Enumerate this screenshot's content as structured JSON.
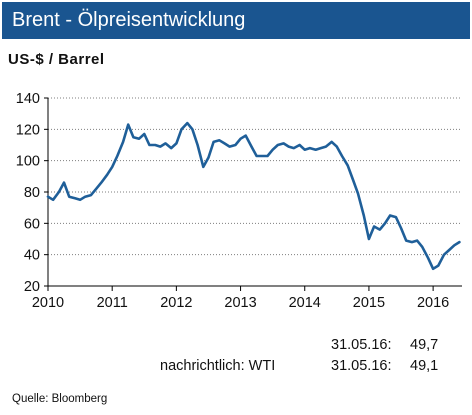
{
  "title": "Brent - Ölpreisentwicklung",
  "unit_label": "US-$ / Barrel",
  "annotations": [
    {
      "label": "",
      "date": "31.05.16:",
      "value": "49,7"
    },
    {
      "label": "nachrichtlich: WTI",
      "date": "31.05.16:",
      "value": "49,1"
    }
  ],
  "source": "Quelle: Bloomberg",
  "colors": {
    "title_bar": "#1a5590",
    "line": "#1f5f99",
    "grid": "#7f7f7f"
  },
  "chart_data": {
    "type": "line",
    "title": "Brent - Ölpreisentwicklung",
    "ylabel": "US-$ / Barrel",
    "xlabel": "",
    "ylim": [
      20,
      140
    ],
    "xlim": [
      2010,
      2016.45
    ],
    "yticks": [
      20,
      40,
      60,
      80,
      100,
      120,
      140
    ],
    "xticks": [
      2010,
      2011,
      2012,
      2013,
      2014,
      2015,
      2016
    ],
    "grid": "horizontal",
    "series": [
      {
        "x": [
          2010.0,
          2010.08,
          2010.17,
          2010.25,
          2010.33,
          2010.42,
          2010.5,
          2010.58,
          2010.67,
          2010.75,
          2010.83,
          2010.92,
          2011.0,
          2011.08,
          2011.17,
          2011.25,
          2011.33,
          2011.42,
          2011.5,
          2011.58,
          2011.67,
          2011.75,
          2011.83,
          2011.92,
          2012.0,
          2012.08,
          2012.17,
          2012.25,
          2012.33,
          2012.42,
          2012.5,
          2012.58,
          2012.67,
          2012.75,
          2012.83,
          2012.92,
          2013.0,
          2013.08,
          2013.17,
          2013.25,
          2013.33,
          2013.42,
          2013.5,
          2013.58,
          2013.67,
          2013.75,
          2013.83,
          2013.92,
          2014.0,
          2014.08,
          2014.17,
          2014.25,
          2014.33,
          2014.42,
          2014.5,
          2014.58,
          2014.67,
          2014.75,
          2014.83,
          2014.92,
          2015.0,
          2015.08,
          2015.17,
          2015.25,
          2015.33,
          2015.42,
          2015.5,
          2015.58,
          2015.67,
          2015.75,
          2015.83,
          2015.92,
          2016.0,
          2016.08,
          2016.17,
          2016.25,
          2016.33,
          2016.41
        ],
        "values": [
          77,
          75,
          80,
          86,
          77,
          76,
          75,
          77,
          78,
          82,
          86,
          91,
          96,
          103,
          112,
          123,
          115,
          114,
          117,
          110,
          110,
          109,
          111,
          108,
          111,
          120,
          124,
          120,
          110,
          96,
          102,
          112,
          113,
          111,
          109,
          110,
          114,
          116,
          109,
          103,
          103,
          103,
          107,
          110,
          111,
          109,
          108,
          110,
          107,
          108,
          107,
          108,
          109,
          112,
          109,
          103,
          97,
          88,
          79,
          65,
          50,
          58,
          56,
          60,
          65,
          64,
          57,
          49,
          48,
          49,
          45,
          38,
          31,
          33,
          40,
          43,
          46,
          48
        ]
      }
    ]
  }
}
